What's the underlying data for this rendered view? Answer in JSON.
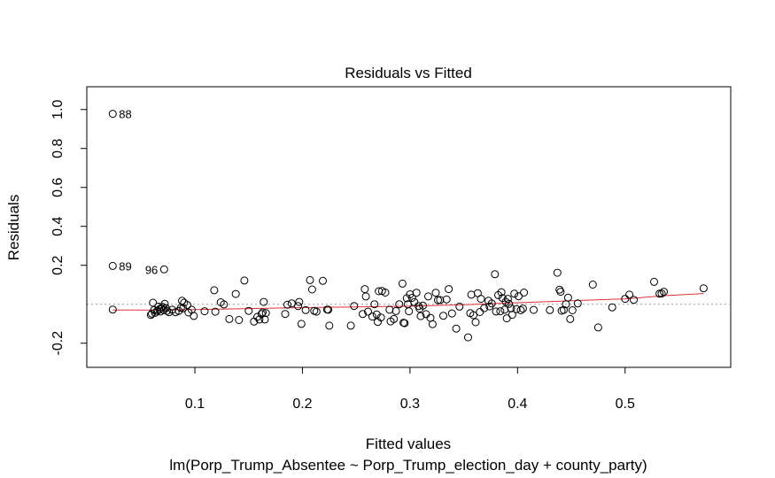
{
  "chart_data": {
    "type": "scatter",
    "title": "Residuals vs Fitted",
    "xlabel": "Fitted values",
    "subtitle": "lm(Porp_Trump_Absentee ~ Porp_Trump_election_day + county_party)",
    "ylabel": "Residuals",
    "xlim": [
      -0.0005,
      0.5982
    ],
    "ylim": [
      -0.324,
      1.117
    ],
    "xticks": [
      0.1,
      0.2,
      0.3,
      0.4,
      0.5
    ],
    "yticks": [
      -0.2,
      0.2,
      0.4,
      0.6,
      0.8,
      1.0
    ],
    "grid": false,
    "reference_line_y": 0,
    "colors": {
      "points": "#000000",
      "smooth": "#e0303a",
      "reference": "#999999"
    },
    "labeled_points": [
      {
        "label": "88",
        "x": 0.0236,
        "y": 0.978
      },
      {
        "label": "89",
        "x": 0.0236,
        "y": 0.197
      },
      {
        "label": "96",
        "x": 0.0714,
        "y": 0.179
      }
    ],
    "points": [
      [
        0.0236,
        -0.027
      ],
      [
        0.059,
        -0.055
      ],
      [
        0.06,
        -0.048
      ],
      [
        0.061,
        0.008
      ],
      [
        0.062,
        -0.03
      ],
      [
        0.063,
        -0.044
      ],
      [
        0.065,
        -0.034
      ],
      [
        0.066,
        -0.012
      ],
      [
        0.067,
        -0.026
      ],
      [
        0.068,
        -0.037
      ],
      [
        0.069,
        -0.02
      ],
      [
        0.07,
        -0.013
      ],
      [
        0.071,
        -0.03
      ],
      [
        0.072,
        0.002
      ],
      [
        0.073,
        -0.02
      ],
      [
        0.074,
        -0.034
      ],
      [
        0.076,
        -0.041
      ],
      [
        0.079,
        -0.028
      ],
      [
        0.082,
        -0.041
      ],
      [
        0.085,
        -0.034
      ],
      [
        0.087,
        -0.018
      ],
      [
        0.088,
        0.018
      ],
      [
        0.089,
        -0.021
      ],
      [
        0.09,
        0.008
      ],
      [
        0.093,
        -0.004
      ],
      [
        0.094,
        -0.042
      ],
      [
        0.097,
        -0.028
      ],
      [
        0.099,
        -0.06
      ],
      [
        0.109,
        -0.036
      ],
      [
        0.118,
        0.072
      ],
      [
        0.119,
        -0.038
      ],
      [
        0.124,
        0.01
      ],
      [
        0.127,
        -0.001
      ],
      [
        0.132,
        -0.076
      ],
      [
        0.138,
        0.053
      ],
      [
        0.141,
        -0.081
      ],
      [
        0.146,
        0.122
      ],
      [
        0.15,
        -0.034
      ],
      [
        0.155,
        -0.089
      ],
      [
        0.158,
        -0.065
      ],
      [
        0.16,
        -0.078
      ],
      [
        0.162,
        -0.05
      ],
      [
        0.163,
        -0.042
      ],
      [
        0.164,
        0.012
      ],
      [
        0.165,
        -0.078
      ],
      [
        0.166,
        -0.045
      ],
      [
        0.184,
        -0.05
      ],
      [
        0.186,
        -0.002
      ],
      [
        0.19,
        0.004
      ],
      [
        0.196,
        -0.009
      ],
      [
        0.197,
        0.012
      ],
      [
        0.199,
        -0.101
      ],
      [
        0.203,
        -0.03
      ],
      [
        0.207,
        0.124
      ],
      [
        0.209,
        0.076
      ],
      [
        0.211,
        -0.034
      ],
      [
        0.213,
        -0.038
      ],
      [
        0.219,
        0.12
      ],
      [
        0.223,
        -0.027
      ],
      [
        0.224,
        -0.028
      ],
      [
        0.225,
        -0.11
      ],
      [
        0.245,
        -0.11
      ],
      [
        0.248,
        -0.009
      ],
      [
        0.256,
        -0.05
      ],
      [
        0.258,
        0.078
      ],
      [
        0.259,
        0.04
      ],
      [
        0.261,
        -0.038
      ],
      [
        0.265,
        -0.063
      ],
      [
        0.267,
        0.0
      ],
      [
        0.269,
        -0.052
      ],
      [
        0.27,
        -0.091
      ],
      [
        0.271,
        0.067
      ],
      [
        0.273,
        -0.068
      ],
      [
        0.274,
        0.068
      ],
      [
        0.277,
        0.06
      ],
      [
        0.281,
        -0.028
      ],
      [
        0.282,
        -0.088
      ],
      [
        0.285,
        -0.076
      ],
      [
        0.287,
        -0.035
      ],
      [
        0.29,
        0.0
      ],
      [
        0.293,
        0.106
      ],
      [
        0.294,
        -0.095
      ],
      [
        0.295,
        -0.097
      ],
      [
        0.297,
        0.031
      ],
      [
        0.298,
        0.0
      ],
      [
        0.299,
        -0.036
      ],
      [
        0.3,
        0.051
      ],
      [
        0.302,
        0.033
      ],
      [
        0.304,
        0.011
      ],
      [
        0.306,
        0.059
      ],
      [
        0.308,
        -0.009
      ],
      [
        0.309,
        -0.022
      ],
      [
        0.31,
        -0.061
      ],
      [
        0.312,
        -0.007
      ],
      [
        0.315,
        -0.051
      ],
      [
        0.317,
        0.04
      ],
      [
        0.319,
        -0.07
      ],
      [
        0.321,
        -0.102
      ],
      [
        0.324,
        0.059
      ],
      [
        0.326,
        0.021
      ],
      [
        0.328,
        0.022
      ],
      [
        0.331,
        -0.059
      ],
      [
        0.334,
        0.025
      ],
      [
        0.336,
        0.078
      ],
      [
        0.339,
        -0.047
      ],
      [
        0.343,
        -0.125
      ],
      [
        0.346,
        -0.012
      ],
      [
        0.354,
        -0.17
      ],
      [
        0.356,
        -0.046
      ],
      [
        0.357,
        0.049
      ],
      [
        0.359,
        -0.056
      ],
      [
        0.361,
        -0.092
      ],
      [
        0.363,
        0.057
      ],
      [
        0.365,
        -0.04
      ],
      [
        0.366,
        0.028
      ],
      [
        0.369,
        -0.02
      ],
      [
        0.373,
        0.018
      ],
      [
        0.374,
        -0.011
      ],
      [
        0.376,
        0.004
      ],
      [
        0.379,
        0.154
      ],
      [
        0.38,
        -0.037
      ],
      [
        0.382,
        0.047
      ],
      [
        0.384,
        -0.036
      ],
      [
        0.385,
        0.062
      ],
      [
        0.386,
        0.032
      ],
      [
        0.388,
        -0.028
      ],
      [
        0.389,
        0.013
      ],
      [
        0.39,
        -0.072
      ],
      [
        0.391,
        0.028
      ],
      [
        0.392,
        0.002
      ],
      [
        0.394,
        -0.021
      ],
      [
        0.395,
        -0.054
      ],
      [
        0.397,
        0.054
      ],
      [
        0.399,
        -0.025
      ],
      [
        0.401,
        0.041
      ],
      [
        0.403,
        -0.031
      ],
      [
        0.405,
        -0.022
      ],
      [
        0.406,
        0.06
      ],
      [
        0.415,
        -0.029
      ],
      [
        0.43,
        -0.03
      ],
      [
        0.437,
        0.162
      ],
      [
        0.439,
        0.075
      ],
      [
        0.44,
        0.064
      ],
      [
        0.441,
        -0.033
      ],
      [
        0.443,
        -0.029
      ],
      [
        0.445,
        0.0
      ],
      [
        0.447,
        0.034
      ],
      [
        0.449,
        -0.076
      ],
      [
        0.451,
        -0.031
      ],
      [
        0.456,
        0.004
      ],
      [
        0.47,
        0.101
      ],
      [
        0.475,
        -0.119
      ],
      [
        0.488,
        -0.016
      ],
      [
        0.5,
        0.028
      ],
      [
        0.504,
        0.049
      ],
      [
        0.508,
        0.023
      ],
      [
        0.527,
        0.115
      ],
      [
        0.532,
        0.054
      ],
      [
        0.534,
        0.055
      ],
      [
        0.536,
        0.064
      ],
      [
        0.573,
        0.082
      ]
    ],
    "smooth": [
      [
        0.0236,
        -0.03
      ],
      [
        0.06,
        -0.03
      ],
      [
        0.1,
        -0.027
      ],
      [
        0.15,
        -0.022
      ],
      [
        0.2,
        -0.017
      ],
      [
        0.25,
        -0.014
      ],
      [
        0.3,
        -0.01
      ],
      [
        0.35,
        -0.002
      ],
      [
        0.4,
        0.008
      ],
      [
        0.45,
        0.018
      ],
      [
        0.5,
        0.028
      ],
      [
        0.54,
        0.045
      ],
      [
        0.573,
        0.055
      ]
    ]
  }
}
